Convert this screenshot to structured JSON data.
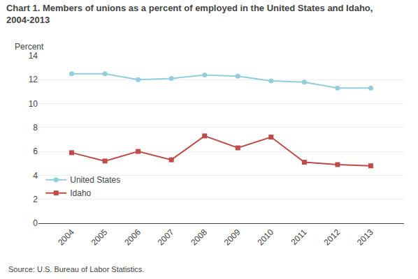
{
  "chart_data": {
    "type": "line",
    "title": "Chart 1. Members of unions as a percent of employed in the United States and Idaho,\n2004-2013",
    "y_label": "Percent",
    "annotations": [
      "Source: U.S. Bureau of Labor Statistics."
    ],
    "x": [
      2004,
      2005,
      2006,
      2007,
      2008,
      2009,
      2010,
      2011,
      2012,
      2013
    ],
    "series": [
      {
        "name": "United States",
        "color": "#92CDDC",
        "marker": "circle",
        "values": [
          12.5,
          12.5,
          12.0,
          12.1,
          12.4,
          12.3,
          11.9,
          11.8,
          11.3,
          11.3
        ]
      },
      {
        "name": "Idaho",
        "color": "#BE4B48",
        "marker": "square",
        "values": [
          5.9,
          5.2,
          6.0,
          5.3,
          7.3,
          6.3,
          7.2,
          5.1,
          4.9,
          4.8
        ]
      }
    ],
    "xlim": [
      2003,
      2014
    ],
    "xticks": [
      2004,
      2005,
      2006,
      2007,
      2008,
      2009,
      2010,
      2011,
      2012,
      2013
    ],
    "ylim": [
      0,
      14
    ],
    "yticks": [
      0,
      2,
      4,
      6,
      8,
      10,
      12,
      14
    ],
    "grid": true,
    "legend": "lower left"
  }
}
